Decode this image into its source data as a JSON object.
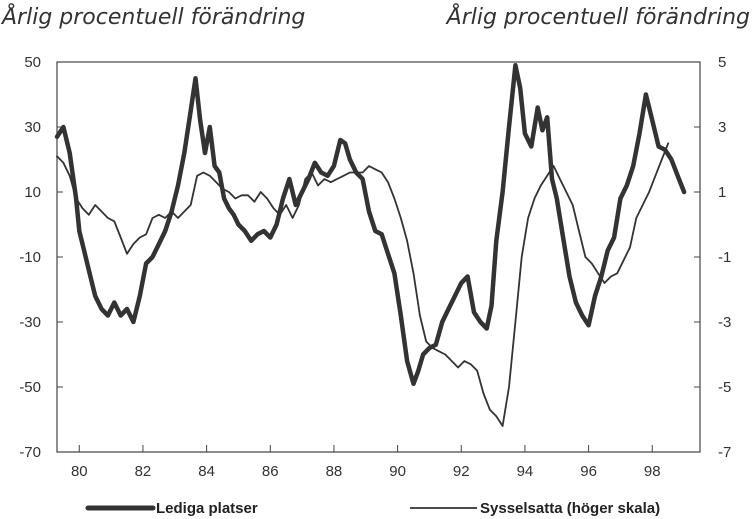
{
  "chart_data": {
    "type": "line",
    "left_axis_title": "Årlig procentuell förändring",
    "right_axis_title": "Årlig procentuell förändring",
    "x_tick_labels": [
      "80",
      "82",
      "84",
      "86",
      "88",
      "90",
      "92",
      "94",
      "96",
      "98"
    ],
    "x_tick_values": [
      1980,
      1982,
      1984,
      1986,
      1988,
      1990,
      1992,
      1994,
      1996,
      1998
    ],
    "xlim": [
      1979.3,
      1999.5
    ],
    "left_y_tick_labels": [
      "50",
      "30",
      "10",
      "-10",
      "-30",
      "-50",
      "-70"
    ],
    "left_y_tick_values": [
      50,
      30,
      10,
      -10,
      -30,
      -50,
      -70
    ],
    "ylim_left": [
      -70,
      50
    ],
    "right_y_tick_labels": [
      "5",
      "3",
      "1",
      "-1",
      "-3",
      "-5",
      "-7"
    ],
    "right_y_tick_values": [
      5,
      3,
      1,
      -1,
      -3,
      -5,
      -7
    ],
    "ylim_right": [
      -7,
      5
    ],
    "grid": false,
    "legend_position": "bottom",
    "series": [
      {
        "name": "Lediga platser",
        "axis": "left",
        "color": "#333333",
        "line_weight": "bold",
        "x": [
          1979.3,
          1979.5,
          1979.7,
          1979.9,
          1980.0,
          1980.15,
          1980.3,
          1980.5,
          1980.7,
          1980.9,
          1981.1,
          1981.3,
          1981.5,
          1981.7,
          1981.9,
          1982.1,
          1982.3,
          1982.5,
          1982.7,
          1982.9,
          1983.1,
          1983.3,
          1983.5,
          1983.65,
          1983.8,
          1983.95,
          1984.1,
          1984.25,
          1984.4,
          1984.55,
          1984.7,
          1984.85,
          1985.0,
          1985.2,
          1985.4,
          1985.6,
          1985.8,
          1986.0,
          1986.2,
          1986.4,
          1986.6,
          1986.8,
          1987.0,
          1987.2,
          1987.4,
          1987.6,
          1987.8,
          1988.0,
          1988.2,
          1988.35,
          1988.5,
          1988.7,
          1988.9,
          1989.1,
          1989.3,
          1989.5,
          1989.7,
          1989.9,
          1990.1,
          1990.3,
          1990.5,
          1990.65,
          1990.8,
          1991.0,
          1991.2,
          1991.4,
          1991.6,
          1991.8,
          1992.0,
          1992.2,
          1992.4,
          1992.6,
          1992.8,
          1992.95,
          1993.1,
          1993.3,
          1993.5,
          1993.7,
          1993.85,
          1994.0,
          1994.2,
          1994.4,
          1994.55,
          1994.7,
          1994.85,
          1995.0,
          1995.2,
          1995.4,
          1995.6,
          1995.8,
          1996.0,
          1996.2,
          1996.4,
          1996.6,
          1996.8,
          1997.0,
          1997.2,
          1997.4,
          1997.6,
          1997.8,
          1998.0,
          1998.2,
          1998.4,
          1998.6,
          1998.8,
          1999.0
        ],
        "values": [
          27,
          30,
          22,
          8,
          -2,
          -8,
          -14,
          -22,
          -26,
          -28,
          -24,
          -28,
          -26,
          -30,
          -22,
          -12,
          -10,
          -6,
          -2,
          4,
          12,
          22,
          35,
          45,
          32,
          22,
          30,
          18,
          16,
          8,
          5,
          3,
          0,
          -2,
          -5,
          -3,
          -2,
          -4,
          0,
          8,
          14,
          6,
          10,
          14,
          19,
          16,
          15,
          18,
          26,
          25,
          20,
          16,
          14,
          4,
          -2,
          -3,
          -9,
          -15,
          -28,
          -42,
          -49,
          -45,
          -40,
          -38,
          -37,
          -30,
          -26,
          -22,
          -18,
          -16,
          -27,
          -30,
          -32,
          -25,
          -5,
          10,
          30,
          49,
          42,
          28,
          24,
          36,
          29,
          33,
          14,
          8,
          -4,
          -16,
          -24,
          -28,
          -31,
          -22,
          -16,
          -8,
          -4,
          8,
          12,
          18,
          28,
          40,
          32,
          24,
          23,
          20,
          15,
          10
        ]
      },
      {
        "name": "Sysselsatta (höger skala)",
        "axis": "right",
        "color": "#333333",
        "line_weight": "thin",
        "x": [
          1979.3,
          1979.5,
          1979.7,
          1979.9,
          1980.1,
          1980.3,
          1980.5,
          1980.7,
          1980.9,
          1981.1,
          1981.3,
          1981.5,
          1981.7,
          1981.9,
          1982.1,
          1982.3,
          1982.5,
          1982.7,
          1982.9,
          1983.1,
          1983.3,
          1983.5,
          1983.7,
          1983.9,
          1984.1,
          1984.3,
          1984.5,
          1984.7,
          1984.9,
          1985.1,
          1985.3,
          1985.5,
          1985.7,
          1985.9,
          1986.1,
          1986.3,
          1986.5,
          1986.7,
          1986.9,
          1987.1,
          1987.3,
          1987.5,
          1987.7,
          1987.9,
          1988.1,
          1988.3,
          1988.5,
          1988.7,
          1988.9,
          1989.1,
          1989.3,
          1989.5,
          1989.7,
          1989.9,
          1990.1,
          1990.3,
          1990.5,
          1990.7,
          1990.9,
          1991.1,
          1991.3,
          1991.5,
          1991.7,
          1991.9,
          1992.1,
          1992.3,
          1992.5,
          1992.7,
          1992.9,
          1993.1,
          1993.3,
          1993.5,
          1993.7,
          1993.9,
          1994.1,
          1994.3,
          1994.5,
          1994.7,
          1994.9,
          1995.1,
          1995.3,
          1995.5,
          1995.7,
          1995.9,
          1996.1,
          1996.3,
          1996.5,
          1996.7,
          1996.9,
          1997.1,
          1997.3,
          1997.5,
          1997.7,
          1997.9,
          1998.1,
          1998.3,
          1998.5
        ],
        "values": [
          2.1,
          1.9,
          1.5,
          0.8,
          0.5,
          0.3,
          0.6,
          0.4,
          0.2,
          0.1,
          -0.4,
          -0.9,
          -0.6,
          -0.4,
          -0.3,
          0.2,
          0.3,
          0.2,
          0.4,
          0.2,
          0.4,
          0.6,
          1.5,
          1.6,
          1.5,
          1.3,
          1.1,
          1.0,
          0.8,
          0.9,
          0.9,
          0.7,
          1.0,
          0.8,
          0.5,
          0.3,
          0.6,
          0.2,
          0.6,
          1.4,
          1.6,
          1.2,
          1.4,
          1.3,
          1.4,
          1.5,
          1.6,
          1.6,
          1.6,
          1.8,
          1.7,
          1.6,
          1.3,
          0.8,
          0.2,
          -0.5,
          -1.5,
          -2.8,
          -3.6,
          -3.8,
          -3.9,
          -4.0,
          -4.2,
          -4.4,
          -4.2,
          -4.3,
          -4.5,
          -5.2,
          -5.7,
          -5.9,
          -6.2,
          -5.0,
          -3.0,
          -1.0,
          0.2,
          0.8,
          1.2,
          1.5,
          1.8,
          1.4,
          1.0,
          0.6,
          -0.2,
          -1.0,
          -1.2,
          -1.5,
          -1.8,
          -1.6,
          -1.5,
          -1.1,
          -0.7,
          0.2,
          0.6,
          1.0,
          1.5,
          2.0,
          2.5
        ]
      }
    ]
  }
}
